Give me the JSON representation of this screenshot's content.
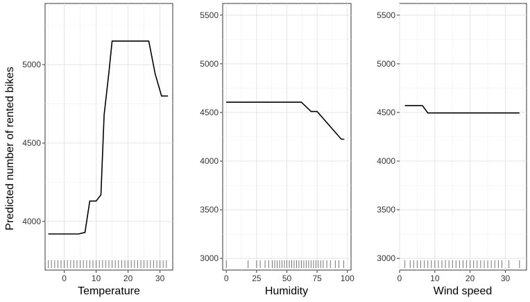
{
  "ylabel": "Predicted number of rented bikes",
  "chart_data": [
    {
      "type": "line",
      "xlabel": "Temperature",
      "xlim": [
        -6,
        34
      ],
      "ylim": [
        3690,
        5390
      ],
      "xticks": [
        0,
        10,
        20,
        30
      ],
      "yticks": [
        4000,
        4500,
        5000
      ],
      "grid": true,
      "x": [
        -5,
        4.5,
        6.5,
        8,
        10,
        11.5,
        12.5,
        14,
        15,
        17,
        19,
        25,
        26.5,
        28.5,
        30.5,
        32.5
      ],
      "y": [
        3920,
        3920,
        3930,
        4130,
        4130,
        4170,
        4680,
        4950,
        5150,
        5150,
        5150,
        5150,
        5150,
        4940,
        4800,
        4800
      ],
      "rug": [
        -5,
        -4,
        -3,
        -2,
        -1,
        0,
        1,
        2,
        3,
        4,
        5,
        6,
        7,
        8,
        9,
        10,
        11,
        12,
        13,
        14,
        15,
        16,
        17,
        18,
        19,
        20,
        21,
        22,
        23,
        24,
        25,
        26,
        27,
        28,
        29,
        30,
        31,
        32
      ]
    },
    {
      "type": "line",
      "xlabel": "Humidity",
      "xlim": [
        -3,
        103
      ],
      "ylim": [
        2880,
        5620
      ],
      "xticks": [
        0,
        25,
        50,
        75,
        100
      ],
      "yticks": [
        3000,
        3500,
        4000,
        4500,
        5000,
        5500
      ],
      "grid": true,
      "x": [
        0,
        62,
        70,
        75,
        95,
        97.5
      ],
      "y": [
        4605,
        4605,
        4510,
        4510,
        4225,
        4225
      ],
      "rug": [
        0,
        18,
        25,
        28,
        32,
        35,
        38,
        40,
        42,
        44,
        46,
        48,
        50,
        52,
        54,
        56,
        58,
        60,
        62,
        64,
        66,
        68,
        70,
        72,
        74,
        76,
        78,
        80,
        83,
        86,
        90,
        93,
        97
      ]
    },
    {
      "type": "line",
      "xlabel": "Wind speed",
      "xlim": [
        0,
        36
      ],
      "ylim": [
        2880,
        5620
      ],
      "xticks": [
        0,
        10,
        20,
        30
      ],
      "yticks": [
        3000,
        3500,
        4000,
        4500,
        5000,
        5500
      ],
      "grid": true,
      "x": [
        1.5,
        6.5,
        8,
        34
      ],
      "y": [
        4570,
        4570,
        4495,
        4495
      ],
      "rug": [
        1.5,
        3,
        4,
        5,
        6,
        7,
        8,
        9,
        10,
        11,
        12,
        13,
        14,
        15,
        16,
        17,
        18,
        19,
        20,
        21,
        22,
        23,
        24,
        25,
        26,
        27,
        28,
        29,
        31,
        34
      ]
    }
  ]
}
